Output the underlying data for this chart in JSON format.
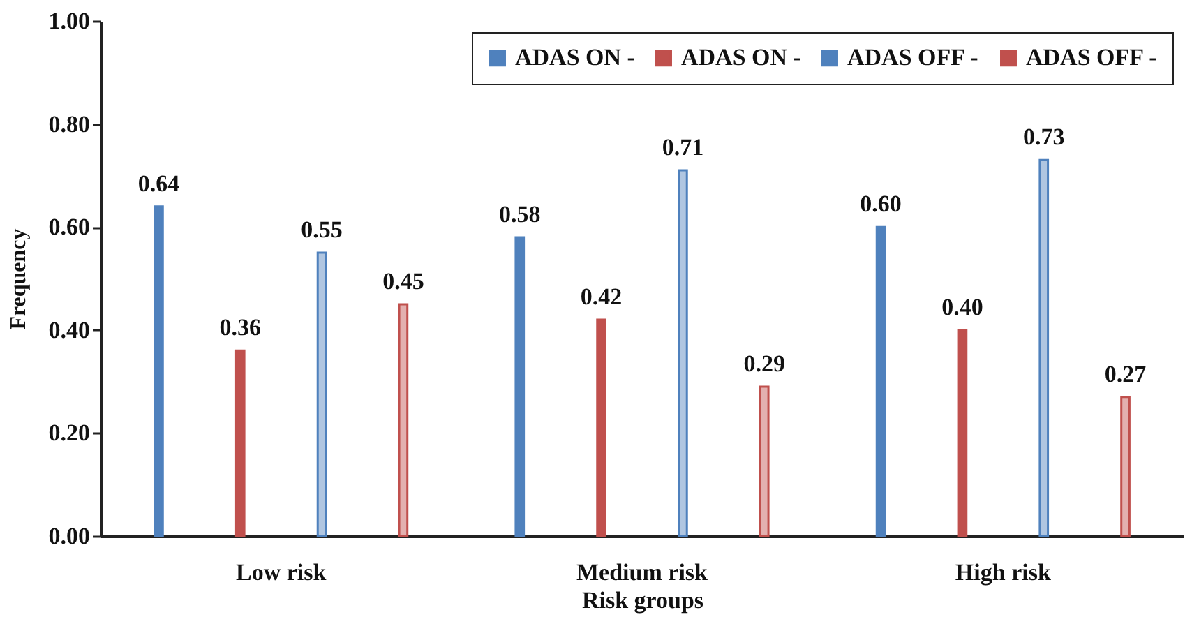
{
  "chart_data": {
    "type": "bar",
    "xlabel": "Risk groups",
    "ylabel": "Frequency",
    "categories": [
      "Low risk",
      "Medium risk",
      "High risk"
    ],
    "series": [
      {
        "name": "ADAS ON -",
        "color": "#4f81bd",
        "values": [
          0.64,
          0.58,
          0.6
        ],
        "value_labels": [
          "0.64",
          "0.58",
          "0.60"
        ]
      },
      {
        "name": "ADAS ON -",
        "color": "#c0504d",
        "values": [
          0.36,
          0.42,
          0.4
        ],
        "value_labels": [
          "0.36",
          "0.42",
          "0.40"
        ]
      },
      {
        "name": "ADAS OFF -",
        "color": "#4f81bd",
        "values": [
          0.55,
          0.71,
          0.73
        ],
        "value_labels": [
          "0.55",
          "0.71",
          "0.73"
        ]
      },
      {
        "name": "ADAS OFF -",
        "color": "#c0504d",
        "values": [
          0.45,
          0.29,
          0.27
        ],
        "value_labels": [
          "0.45",
          "0.29",
          "0.27"
        ]
      }
    ],
    "ylim": [
      0,
      1
    ],
    "yticks": [
      {
        "value": 0,
        "label": "0.00"
      },
      {
        "value": 0.2,
        "label": "0.20"
      },
      {
        "value": 0.4,
        "label": "0.40"
      },
      {
        "value": 0.6,
        "label": "0.60"
      },
      {
        "value": 0.8,
        "label": "0.80"
      },
      {
        "value": 1,
        "label": "1.00"
      }
    ],
    "grid": false,
    "legend": "top right"
  }
}
